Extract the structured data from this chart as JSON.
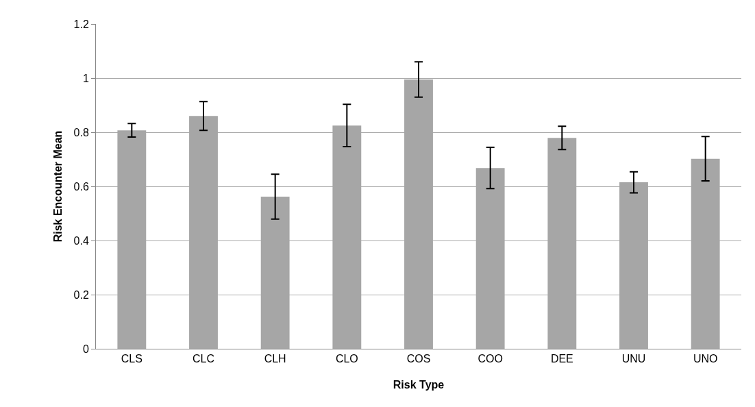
{
  "chart_data": {
    "type": "bar",
    "xlabel": "Risk Type",
    "ylabel": "Risk Encounter Mean",
    "categories": [
      "CLS",
      "CLC",
      "CLH",
      "CLO",
      "COS",
      "COO",
      "DEE",
      "UNU",
      "UNO"
    ],
    "values": [
      0.807,
      0.86,
      0.562,
      0.825,
      0.995,
      0.668,
      0.779,
      0.615,
      0.702
    ],
    "errors": [
      0.025,
      0.053,
      0.083,
      0.078,
      0.065,
      0.076,
      0.043,
      0.039,
      0.082
    ],
    "color": "#a6a6a6",
    "ylim": [
      0,
      1.2
    ],
    "yticks": [
      0,
      0.2,
      0.4,
      0.6,
      0.8,
      1,
      1.2
    ],
    "grid": "y"
  }
}
